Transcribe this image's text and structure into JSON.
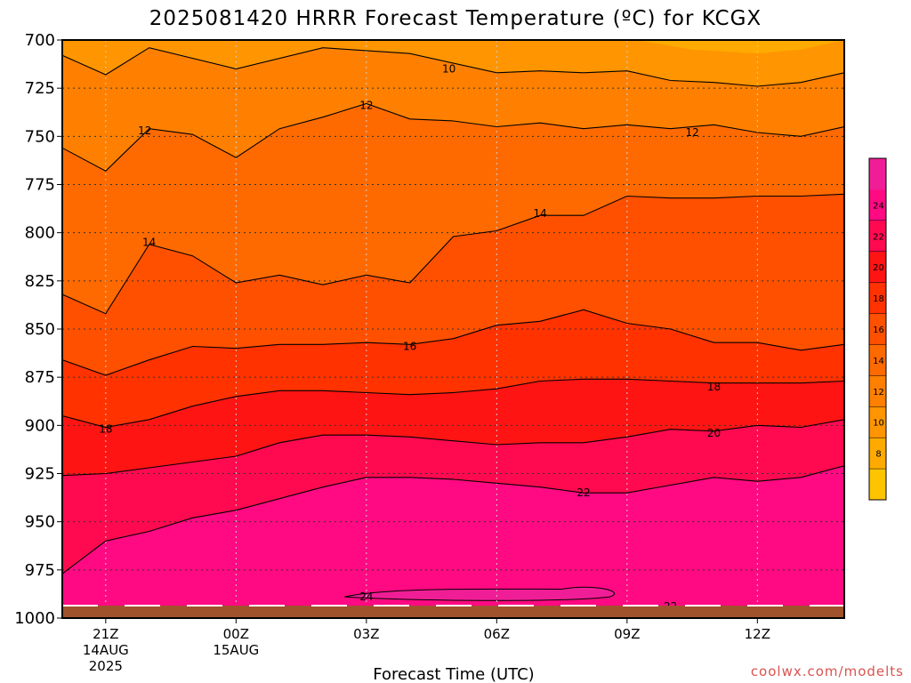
{
  "chart_data": {
    "type": "heatmap",
    "title": "2025081420 HRRR Forecast Temperature (ºC) for KCGX",
    "xlabel": "Forecast Time (UTC)",
    "ylabel": "",
    "credit": "coolwx.com/modelts",
    "y_scale": "pressure (inverted)",
    "ylim": [
      1000,
      700
    ],
    "y_ticks": [
      700,
      725,
      750,
      775,
      800,
      825,
      850,
      875,
      900,
      925,
      950,
      975,
      1000
    ],
    "x_range_hours": [
      -1,
      17
    ],
    "x_ticks": [
      {
        "hour": 0,
        "label": "21Z",
        "sub1": "14AUG",
        "sub2": "2025"
      },
      {
        "hour": 3,
        "label": "00Z",
        "sub1": "15AUG",
        "sub2": ""
      },
      {
        "hour": 6,
        "label": "03Z",
        "sub1": "",
        "sub2": ""
      },
      {
        "hour": 9,
        "label": "06Z",
        "sub1": "",
        "sub2": ""
      },
      {
        "hour": 12,
        "label": "09Z",
        "sub1": "",
        "sub2": ""
      },
      {
        "hour": 15,
        "label": "12Z",
        "sub1": "",
        "sub2": ""
      }
    ],
    "grid": "dotted",
    "colorbar": {
      "levels": [
        6,
        8,
        10,
        12,
        14,
        16,
        18,
        20,
        22,
        24,
        26
      ],
      "tick_labels": [
        "8",
        "10",
        "12",
        "14",
        "16",
        "18",
        "20",
        "22",
        "24"
      ],
      "colors": [
        "#ffc400",
        "#ffaa00",
        "#ff9500",
        "#ff8000",
        "#ff6a00",
        "#ff5000",
        "#ff3200",
        "#ff1414",
        "#ff0a50",
        "#ff0a82",
        "#f01e96"
      ]
    },
    "surface_color": "#a0522d",
    "isotherms": [
      {
        "value": 10,
        "points": [
          [
            -1,
            708
          ],
          [
            0,
            718
          ],
          [
            1,
            704
          ],
          [
            3,
            715
          ],
          [
            5,
            704
          ],
          [
            7,
            707
          ],
          [
            9,
            717
          ],
          [
            10,
            716
          ],
          [
            11,
            717
          ],
          [
            12,
            716
          ],
          [
            13,
            721
          ],
          [
            14,
            722
          ],
          [
            15,
            724
          ],
          [
            16,
            722
          ],
          [
            17,
            717
          ]
        ],
        "label_at": [
          7.9,
          715
        ]
      },
      {
        "value": 12,
        "points": [
          [
            -1,
            756
          ],
          [
            0,
            768
          ],
          [
            1,
            746
          ],
          [
            2,
            749
          ],
          [
            3,
            761
          ],
          [
            4,
            746
          ],
          [
            5,
            740
          ],
          [
            6,
            733
          ],
          [
            7,
            741
          ],
          [
            8,
            742
          ],
          [
            9,
            745
          ],
          [
            10,
            743
          ],
          [
            11,
            746
          ],
          [
            12,
            744
          ],
          [
            13,
            746
          ],
          [
            14,
            744
          ],
          [
            15,
            748
          ],
          [
            16,
            750
          ],
          [
            17,
            745
          ]
        ],
        "label_at": [
          0.9,
          747
        ]
      },
      {
        "value": 12,
        "points": [],
        "label_at": [
          6,
          734
        ]
      },
      {
        "value": 12,
        "points": [],
        "label_at": [
          13.5,
          748
        ]
      },
      {
        "value": 14,
        "points": [
          [
            -1,
            832
          ],
          [
            0,
            842
          ],
          [
            1,
            806
          ],
          [
            2,
            812
          ],
          [
            3,
            826
          ],
          [
            4,
            822
          ],
          [
            5,
            827
          ],
          [
            6,
            822
          ],
          [
            7,
            826
          ],
          [
            8,
            802
          ],
          [
            9,
            799
          ],
          [
            10,
            791
          ],
          [
            11,
            791
          ],
          [
            12,
            781
          ],
          [
            13,
            782
          ],
          [
            14,
            782
          ],
          [
            15,
            781
          ],
          [
            16,
            781
          ],
          [
            17,
            780
          ]
        ],
        "label_at": [
          10,
          790
        ]
      },
      {
        "value": 14,
        "points": [],
        "label_at": [
          1,
          805
        ]
      },
      {
        "value": 16,
        "points": [
          [
            -1,
            866
          ],
          [
            0,
            874
          ],
          [
            1,
            866
          ],
          [
            2,
            859
          ],
          [
            3,
            860
          ],
          [
            4,
            858
          ],
          [
            5,
            858
          ],
          [
            6,
            857
          ],
          [
            7,
            858
          ],
          [
            8,
            855
          ],
          [
            9,
            848
          ],
          [
            10,
            846
          ],
          [
            11,
            840
          ],
          [
            12,
            847
          ],
          [
            13,
            850
          ],
          [
            14,
            857
          ],
          [
            15,
            857
          ],
          [
            16,
            861
          ],
          [
            17,
            858
          ]
        ],
        "label_at": [
          7,
          859
        ]
      },
      {
        "value": 18,
        "points": [
          [
            -1,
            895
          ],
          [
            0,
            901
          ],
          [
            1,
            897
          ],
          [
            2,
            890
          ],
          [
            3,
            885
          ],
          [
            4,
            882
          ],
          [
            5,
            882
          ],
          [
            6,
            883
          ],
          [
            7,
            884
          ],
          [
            8,
            883
          ],
          [
            9,
            881
          ],
          [
            10,
            877
          ],
          [
            11,
            876
          ],
          [
            12,
            876
          ],
          [
            13,
            877
          ],
          [
            14,
            878
          ],
          [
            15,
            878
          ],
          [
            16,
            878
          ],
          [
            17,
            877
          ]
        ],
        "label_at": [
          14,
          880
        ]
      },
      {
        "value": 18,
        "points": [],
        "label_at": [
          0,
          902
        ]
      },
      {
        "value": 20,
        "points": [
          [
            -1,
            926
          ],
          [
            0,
            925
          ],
          [
            1,
            922
          ],
          [
            2,
            919
          ],
          [
            3,
            916
          ],
          [
            4,
            909
          ],
          [
            5,
            905
          ],
          [
            6,
            905
          ],
          [
            7,
            906
          ],
          [
            8,
            908
          ],
          [
            9,
            910
          ],
          [
            10,
            909
          ],
          [
            11,
            909
          ],
          [
            12,
            906
          ],
          [
            13,
            902
          ],
          [
            14,
            903
          ],
          [
            15,
            900
          ],
          [
            16,
            901
          ],
          [
            17,
            897
          ]
        ],
        "label_at": [
          14,
          904
        ]
      },
      {
        "value": 22,
        "points": [
          [
            -1,
            977
          ],
          [
            0,
            960
          ],
          [
            1,
            955
          ],
          [
            2,
            948
          ],
          [
            3,
            944
          ],
          [
            4,
            938
          ],
          [
            5,
            932
          ],
          [
            6,
            927
          ],
          [
            7,
            927
          ],
          [
            8,
            928
          ],
          [
            9,
            930
          ],
          [
            10,
            932
          ],
          [
            11,
            935
          ],
          [
            12,
            935
          ],
          [
            13,
            931
          ],
          [
            14,
            927
          ],
          [
            15,
            929
          ],
          [
            16,
            927
          ],
          [
            17,
            921
          ]
        ],
        "label_at": [
          11,
          935
        ]
      }
    ],
    "extra_labels": [
      {
        "text": "24",
        "hour": 6,
        "p": 989
      },
      {
        "text": "24",
        "hour": 7,
        "p": 998
      },
      {
        "text": "22",
        "hour": 13,
        "p": 994
      }
    ]
  }
}
